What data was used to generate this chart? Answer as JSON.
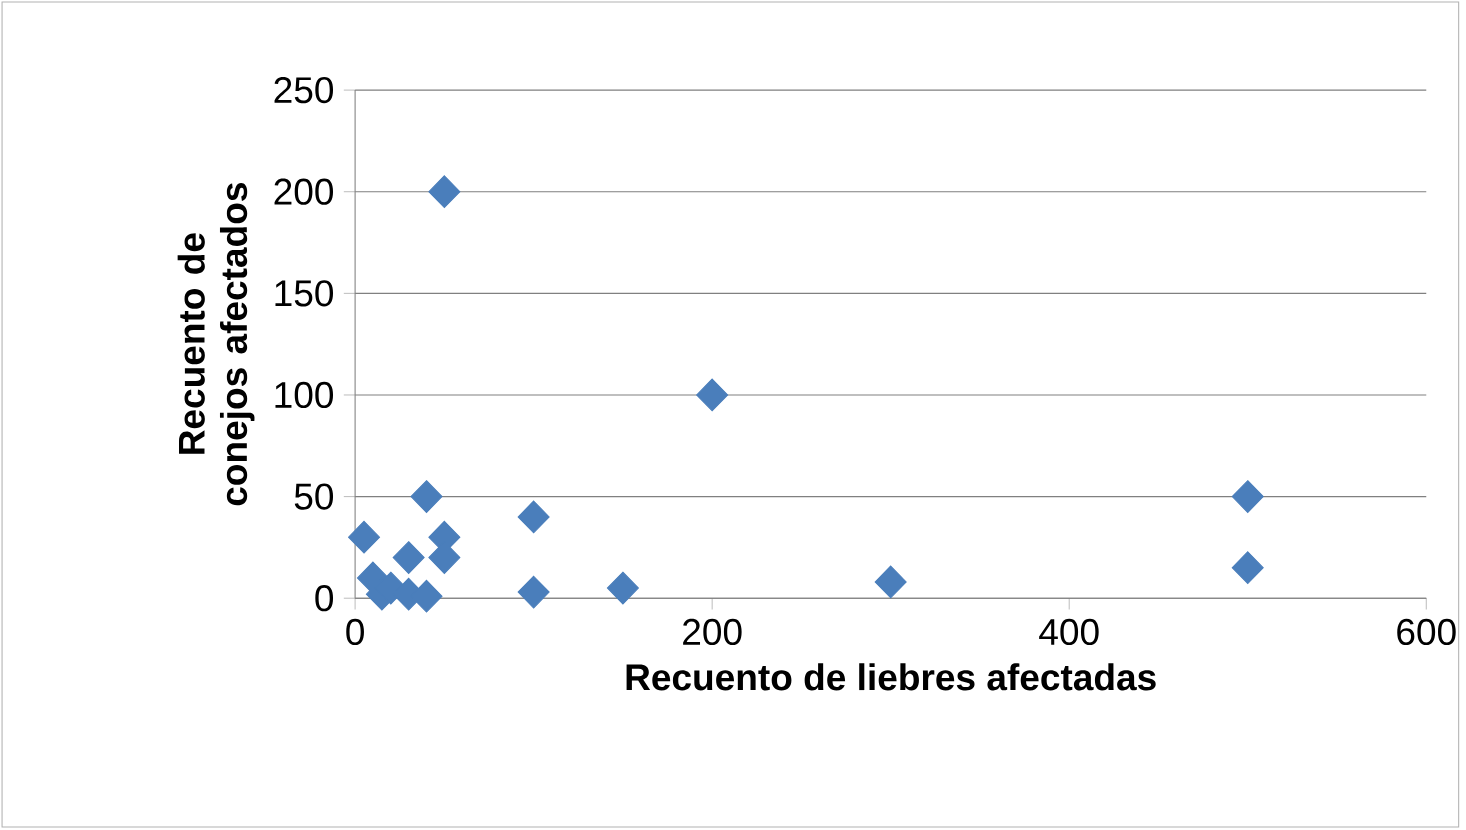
{
  "chart_data": {
    "type": "scatter",
    "xlabel": "Recuento de liebres afectadas",
    "ylabel": "Recuento de conejos afectados",
    "x": [
      50,
      200,
      40,
      100,
      5,
      50,
      30,
      50,
      10,
      15,
      20,
      30,
      40,
      100,
      150,
      300,
      500,
      500
    ],
    "values": [
      200,
      100,
      50,
      40,
      30,
      30,
      20,
      20,
      10,
      2,
      5,
      2,
      1,
      3,
      5,
      8,
      50,
      15
    ],
    "color": "#4a7ebb",
    "marker": "diamond",
    "xlim": [
      0,
      600
    ],
    "xticks": [
      0,
      200,
      400,
      600
    ],
    "ylim": [
      0,
      250
    ],
    "yticks": [
      0,
      50,
      100,
      150,
      200,
      250
    ],
    "grid": "y"
  }
}
